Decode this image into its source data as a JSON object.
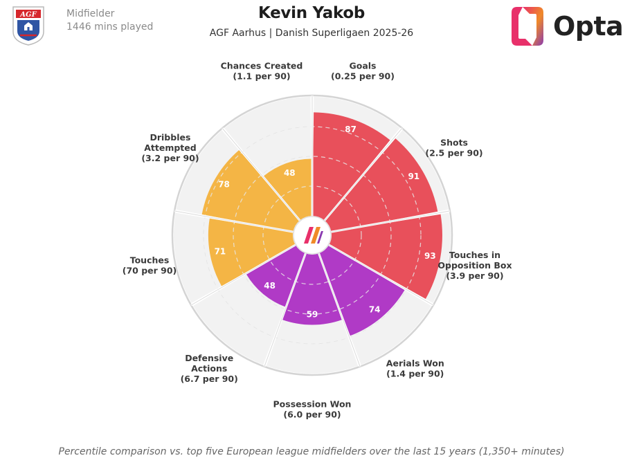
{
  "header": {
    "position": "Midfielder",
    "minutes_played": "1446 mins played",
    "player_name": "Kevin Yakob",
    "subtitle": "AGF Aarhus | Danish Superligaen 2025-26",
    "brand": "Opta"
  },
  "club_crest": {
    "icon": "agf-crest",
    "text": "AGF"
  },
  "footnote": "Percentile comparison vs. top five European league midfielders over the last 15 years (1,350+ minutes)",
  "colors": {
    "attacking": "#e8505b",
    "possession": "#f4b545",
    "defending": "#b03ac6",
    "ring": "#cfcfcf",
    "background_wedge": "#f2f2f2",
    "opta_pink": "#e8306a",
    "opta_orange": "#f08a28",
    "opta_purple": "#8a3ab0"
  },
  "chart_data": {
    "type": "pie",
    "subtype": "radial-percentile",
    "rlim": [
      0,
      100
    ],
    "categories": [
      {
        "label": [
          "Goals",
          "(0.25 per 90)"
        ],
        "value": 87,
        "group": "attacking"
      },
      {
        "label": [
          "Shots",
          "(2.5 per 90)"
        ],
        "value": 91,
        "group": "attacking"
      },
      {
        "label": [
          "Touches in",
          "Opposition Box",
          "(3.9 per 90)"
        ],
        "value": 93,
        "group": "attacking"
      },
      {
        "label": [
          "Aerials Won",
          "(1.4 per 90)"
        ],
        "value": 74,
        "group": "defending"
      },
      {
        "label": [
          "Possession Won",
          "(6.0 per 90)"
        ],
        "value": 59,
        "group": "defending"
      },
      {
        "label": [
          "Defensive",
          "Actions",
          "(6.7 per 90)"
        ],
        "value": 48,
        "group": "defending"
      },
      {
        "label": [
          "Touches",
          "(70 per 90)"
        ],
        "value": 71,
        "group": "possession"
      },
      {
        "label": [
          "Dribbles",
          "Attempted",
          "(3.2 per 90)"
        ],
        "value": 78,
        "group": "possession"
      },
      {
        "label": [
          "Chances Created",
          "(1.1 per 90)"
        ],
        "value": 48,
        "group": "possession"
      }
    ]
  }
}
